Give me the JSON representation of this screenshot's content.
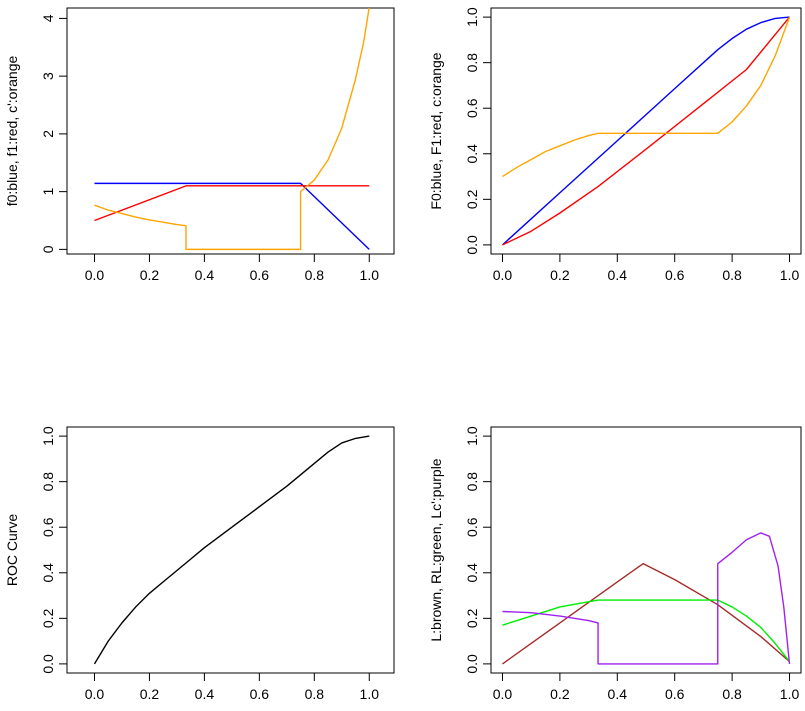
{
  "chart_data": [
    {
      "type": "line",
      "ylabel": "f0:blue, f1:red, c':orange",
      "xlim": [
        0,
        1
      ],
      "ylim": [
        0,
        4
      ],
      "xticks": [
        "0.0",
        "0.2",
        "0.4",
        "0.6",
        "0.8",
        "1.0"
      ],
      "yticks": [
        "0",
        "1",
        "2",
        "3",
        "4"
      ],
      "grid": false,
      "series": [
        {
          "color": "#0000ff",
          "points": [
            [
              0,
              1.143
            ],
            [
              0.75,
              1.143
            ],
            [
              1.0,
              0
            ]
          ]
        },
        {
          "color": "#ff0000",
          "points": [
            [
              0,
              0.5
            ],
            [
              0.333,
              1.1
            ],
            [
              1.0,
              1.1
            ]
          ]
        },
        {
          "color": "#ffa500",
          "points": [
            [
              0,
              0.765
            ],
            [
              0.05,
              0.68
            ],
            [
              0.1,
              0.62
            ],
            [
              0.15,
              0.56
            ],
            [
              0.2,
              0.51
            ],
            [
              0.25,
              0.47
            ],
            [
              0.3,
              0.43
            ],
            [
              0.333,
              0.41
            ],
            [
              0.333,
              0
            ],
            [
              0.75,
              0
            ],
            [
              0.75,
              1.0
            ],
            [
              0.8,
              1.2
            ],
            [
              0.85,
              1.55
            ],
            [
              0.9,
              2.1
            ],
            [
              0.95,
              2.95
            ],
            [
              0.98,
              3.6
            ],
            [
              1.0,
              4.2
            ]
          ]
        }
      ]
    },
    {
      "type": "line",
      "ylabel": "F0:blue, F1:red, c:orange",
      "xlim": [
        0,
        1
      ],
      "ylim": [
        0,
        1
      ],
      "xticks": [
        "0.0",
        "0.2",
        "0.4",
        "0.6",
        "0.8",
        "1.0"
      ],
      "yticks": [
        "0.0",
        "0.2",
        "0.4",
        "0.6",
        "0.8",
        "1.0"
      ],
      "grid": false,
      "series": [
        {
          "color": "#0000ff",
          "points": [
            [
              0,
              0
            ],
            [
              0.2,
              0.229
            ],
            [
              0.4,
              0.457
            ],
            [
              0.6,
              0.686
            ],
            [
              0.75,
              0.857
            ],
            [
              0.8,
              0.906
            ],
            [
              0.85,
              0.947
            ],
            [
              0.9,
              0.976
            ],
            [
              0.95,
              0.994
            ],
            [
              1.0,
              1.0
            ]
          ]
        },
        {
          "color": "#ff0000",
          "points": [
            [
              0,
              0
            ],
            [
              0.1,
              0.06
            ],
            [
              0.2,
              0.14
            ],
            [
              0.333,
              0.256
            ],
            [
              0.5,
              0.42
            ],
            [
              0.7,
              0.62
            ],
            [
              0.85,
              0.77
            ],
            [
              1.0,
              1.0
            ]
          ]
        },
        {
          "color": "#ffa500",
          "points": [
            [
              0,
              0.3
            ],
            [
              0.05,
              0.34
            ],
            [
              0.1,
              0.375
            ],
            [
              0.15,
              0.41
            ],
            [
              0.2,
              0.435
            ],
            [
              0.25,
              0.46
            ],
            [
              0.3,
              0.48
            ],
            [
              0.333,
              0.49
            ],
            [
              0.75,
              0.49
            ],
            [
              0.8,
              0.54
            ],
            [
              0.85,
              0.61
            ],
            [
              0.9,
              0.7
            ],
            [
              0.95,
              0.83
            ],
            [
              1.0,
              1.0
            ]
          ]
        }
      ]
    },
    {
      "type": "line",
      "ylabel": "ROC Curve",
      "xlim": [
        0,
        1
      ],
      "ylim": [
        0,
        1
      ],
      "xticks": [
        "0.0",
        "0.2",
        "0.4",
        "0.6",
        "0.8",
        "1.0"
      ],
      "yticks": [
        "0.0",
        "0.2",
        "0.4",
        "0.6",
        "0.8",
        "1.0"
      ],
      "grid": false,
      "series": [
        {
          "color": "#000000",
          "points": [
            [
              0,
              0
            ],
            [
              0.05,
              0.1
            ],
            [
              0.1,
              0.18
            ],
            [
              0.15,
              0.25
            ],
            [
              0.2,
              0.31
            ],
            [
              0.25,
              0.36
            ],
            [
              0.3,
              0.41
            ],
            [
              0.35,
              0.46
            ],
            [
              0.4,
              0.51
            ],
            [
              0.5,
              0.6
            ],
            [
              0.6,
              0.69
            ],
            [
              0.7,
              0.78
            ],
            [
              0.75,
              0.83
            ],
            [
              0.8,
              0.88
            ],
            [
              0.85,
              0.93
            ],
            [
              0.9,
              0.97
            ],
            [
              0.95,
              0.99
            ],
            [
              1.0,
              1.0
            ]
          ]
        }
      ]
    },
    {
      "type": "line",
      "ylabel": "L:brown, RL:green, Lc':purple",
      "xlim": [
        0,
        1
      ],
      "ylim": [
        0,
        1
      ],
      "xticks": [
        "0.0",
        "0.2",
        "0.4",
        "0.6",
        "0.8",
        "1.0"
      ],
      "yticks": [
        "0.0",
        "0.2",
        "0.4",
        "0.6",
        "0.8",
        "1.0"
      ],
      "grid": false,
      "series": [
        {
          "color": "#a52a2a",
          "points": [
            [
              0,
              0
            ],
            [
              0.2,
              0.18
            ],
            [
              0.4,
              0.36
            ],
            [
              0.49,
              0.44
            ],
            [
              0.6,
              0.37
            ],
            [
              0.75,
              0.26
            ],
            [
              0.9,
              0.12
            ],
            [
              1.0,
              0.01
            ]
          ]
        },
        {
          "color": "#00ee00",
          "points": [
            [
              0,
              0.17
            ],
            [
              0.1,
              0.21
            ],
            [
              0.2,
              0.25
            ],
            [
              0.333,
              0.28
            ],
            [
              0.75,
              0.28
            ],
            [
              0.8,
              0.25
            ],
            [
              0.85,
              0.21
            ],
            [
              0.9,
              0.16
            ],
            [
              0.95,
              0.09
            ],
            [
              1.0,
              0.01
            ]
          ]
        },
        {
          "color": "#a020f0",
          "points": [
            [
              0,
              0.23
            ],
            [
              0.1,
              0.225
            ],
            [
              0.2,
              0.21
            ],
            [
              0.3,
              0.19
            ],
            [
              0.333,
              0.18
            ],
            [
              0.333,
              0
            ],
            [
              0.75,
              0
            ],
            [
              0.75,
              0.44
            ],
            [
              0.8,
              0.49
            ],
            [
              0.85,
              0.545
            ],
            [
              0.9,
              0.575
            ],
            [
              0.93,
              0.56
            ],
            [
              0.96,
              0.43
            ],
            [
              0.98,
              0.25
            ],
            [
              1.0,
              0
            ]
          ]
        }
      ]
    }
  ]
}
